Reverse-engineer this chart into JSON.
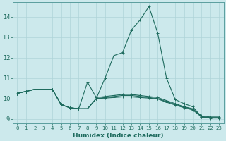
{
  "xlabel": "Humidex (Indice chaleur)",
  "bg_color": "#cce9ec",
  "grid_color": "#afd4d8",
  "line_color": "#1e6b5e",
  "spine_color": "#5a9e9e",
  "xlim": [
    -0.5,
    23.5
  ],
  "ylim": [
    8.8,
    14.7
  ],
  "yticks": [
    9,
    10,
    11,
    12,
    13,
    14
  ],
  "xticks": [
    0,
    1,
    2,
    3,
    4,
    5,
    6,
    7,
    8,
    9,
    10,
    11,
    12,
    13,
    14,
    15,
    16,
    17,
    18,
    19,
    20,
    21,
    22,
    23
  ],
  "main_line": [
    [
      0,
      10.25
    ],
    [
      1,
      10.35
    ],
    [
      2,
      10.45
    ],
    [
      3,
      10.45
    ],
    [
      4,
      10.45
    ],
    [
      5,
      9.7
    ],
    [
      6,
      9.55
    ],
    [
      7,
      9.5
    ],
    [
      8,
      9.5
    ],
    [
      9,
      10.0
    ],
    [
      10,
      11.0
    ],
    [
      11,
      12.1
    ],
    [
      12,
      12.25
    ],
    [
      13,
      13.35
    ],
    [
      14,
      13.85
    ],
    [
      15,
      14.5
    ],
    [
      16,
      13.2
    ],
    [
      17,
      11.0
    ],
    [
      18,
      9.95
    ],
    [
      19,
      9.75
    ],
    [
      20,
      9.6
    ],
    [
      21,
      9.1
    ],
    [
      22,
      9.05
    ],
    [
      23,
      9.05
    ]
  ],
  "flat_line1": [
    [
      0,
      10.25
    ],
    [
      1,
      10.35
    ],
    [
      2,
      10.45
    ],
    [
      3,
      10.45
    ],
    [
      4,
      10.45
    ],
    [
      5,
      9.7
    ],
    [
      6,
      9.55
    ],
    [
      7,
      9.5
    ],
    [
      8,
      10.8
    ],
    [
      9,
      10.05
    ],
    [
      10,
      10.1
    ],
    [
      11,
      10.15
    ],
    [
      12,
      10.2
    ],
    [
      13,
      10.2
    ],
    [
      14,
      10.15
    ],
    [
      15,
      10.1
    ],
    [
      16,
      10.05
    ],
    [
      17,
      9.9
    ],
    [
      18,
      9.75
    ],
    [
      19,
      9.6
    ],
    [
      20,
      9.5
    ],
    [
      21,
      9.15
    ],
    [
      22,
      9.1
    ],
    [
      23,
      9.1
    ]
  ],
  "flat_line2": [
    [
      0,
      10.25
    ],
    [
      1,
      10.35
    ],
    [
      2,
      10.45
    ],
    [
      3,
      10.45
    ],
    [
      4,
      10.45
    ],
    [
      5,
      9.7
    ],
    [
      6,
      9.55
    ],
    [
      7,
      9.5
    ],
    [
      8,
      9.5
    ],
    [
      9,
      10.0
    ],
    [
      10,
      10.05
    ],
    [
      11,
      10.1
    ],
    [
      12,
      10.15
    ],
    [
      13,
      10.15
    ],
    [
      14,
      10.1
    ],
    [
      15,
      10.05
    ],
    [
      16,
      10.0
    ],
    [
      17,
      9.85
    ],
    [
      18,
      9.72
    ],
    [
      19,
      9.58
    ],
    [
      20,
      9.48
    ],
    [
      21,
      9.12
    ],
    [
      22,
      9.07
    ],
    [
      23,
      9.07
    ]
  ],
  "flat_line3": [
    [
      0,
      10.25
    ],
    [
      1,
      10.35
    ],
    [
      2,
      10.45
    ],
    [
      3,
      10.45
    ],
    [
      4,
      10.45
    ],
    [
      5,
      9.7
    ],
    [
      6,
      9.55
    ],
    [
      7,
      9.5
    ],
    [
      8,
      9.5
    ],
    [
      9,
      10.0
    ],
    [
      10,
      10.02
    ],
    [
      11,
      10.05
    ],
    [
      12,
      10.08
    ],
    [
      13,
      10.08
    ],
    [
      14,
      10.05
    ],
    [
      15,
      10.02
    ],
    [
      16,
      9.98
    ],
    [
      17,
      9.82
    ],
    [
      18,
      9.68
    ],
    [
      19,
      9.55
    ],
    [
      20,
      9.44
    ],
    [
      21,
      9.1
    ],
    [
      22,
      9.04
    ],
    [
      23,
      9.04
    ]
  ]
}
